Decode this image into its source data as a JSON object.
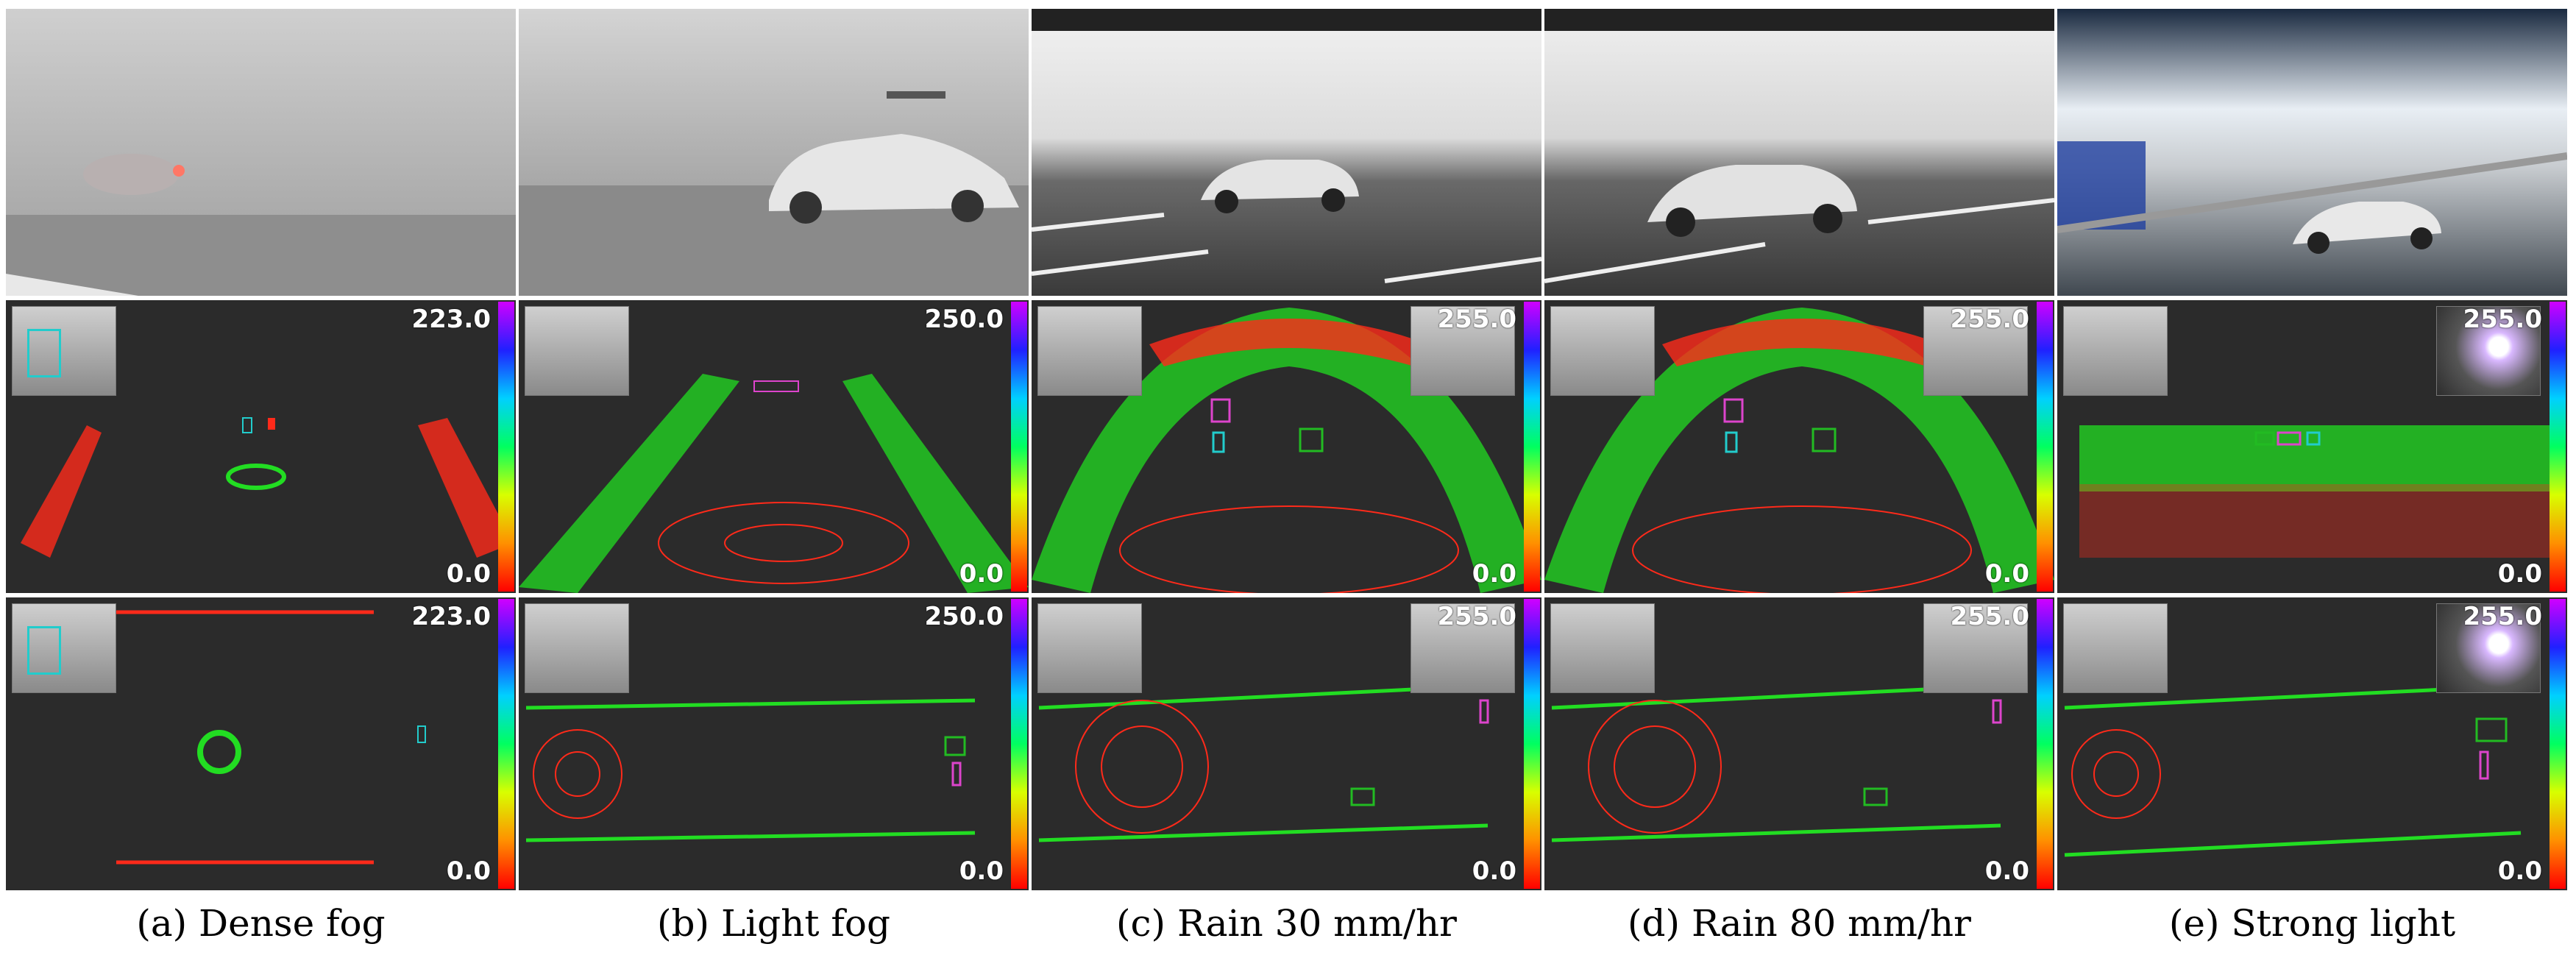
{
  "scenarios": [
    {
      "caption": "(a)  Dense fog",
      "scale_max": "223.0",
      "scale_min": "0.0"
    },
    {
      "caption": "(b)  Light fog",
      "scale_max": "250.0",
      "scale_min": "0.0"
    },
    {
      "caption": "(c)  Rain 30 mm/hr",
      "scale_max": "255.0",
      "scale_min": "0.0"
    },
    {
      "caption": "(d)  Rain 80 mm/hr",
      "scale_max": "255.0",
      "scale_min": "0.0"
    },
    {
      "caption": "(e)  Strong light",
      "scale_max": "255.0",
      "scale_min": "0.0"
    }
  ],
  "colors": {
    "point_near": "#ff2a1a",
    "point_far": "#22dd22",
    "box_cyan": "#22cccc",
    "box_magenta": "#dd44cc",
    "box_green": "#22bb22",
    "background": "#2b2b2b"
  }
}
